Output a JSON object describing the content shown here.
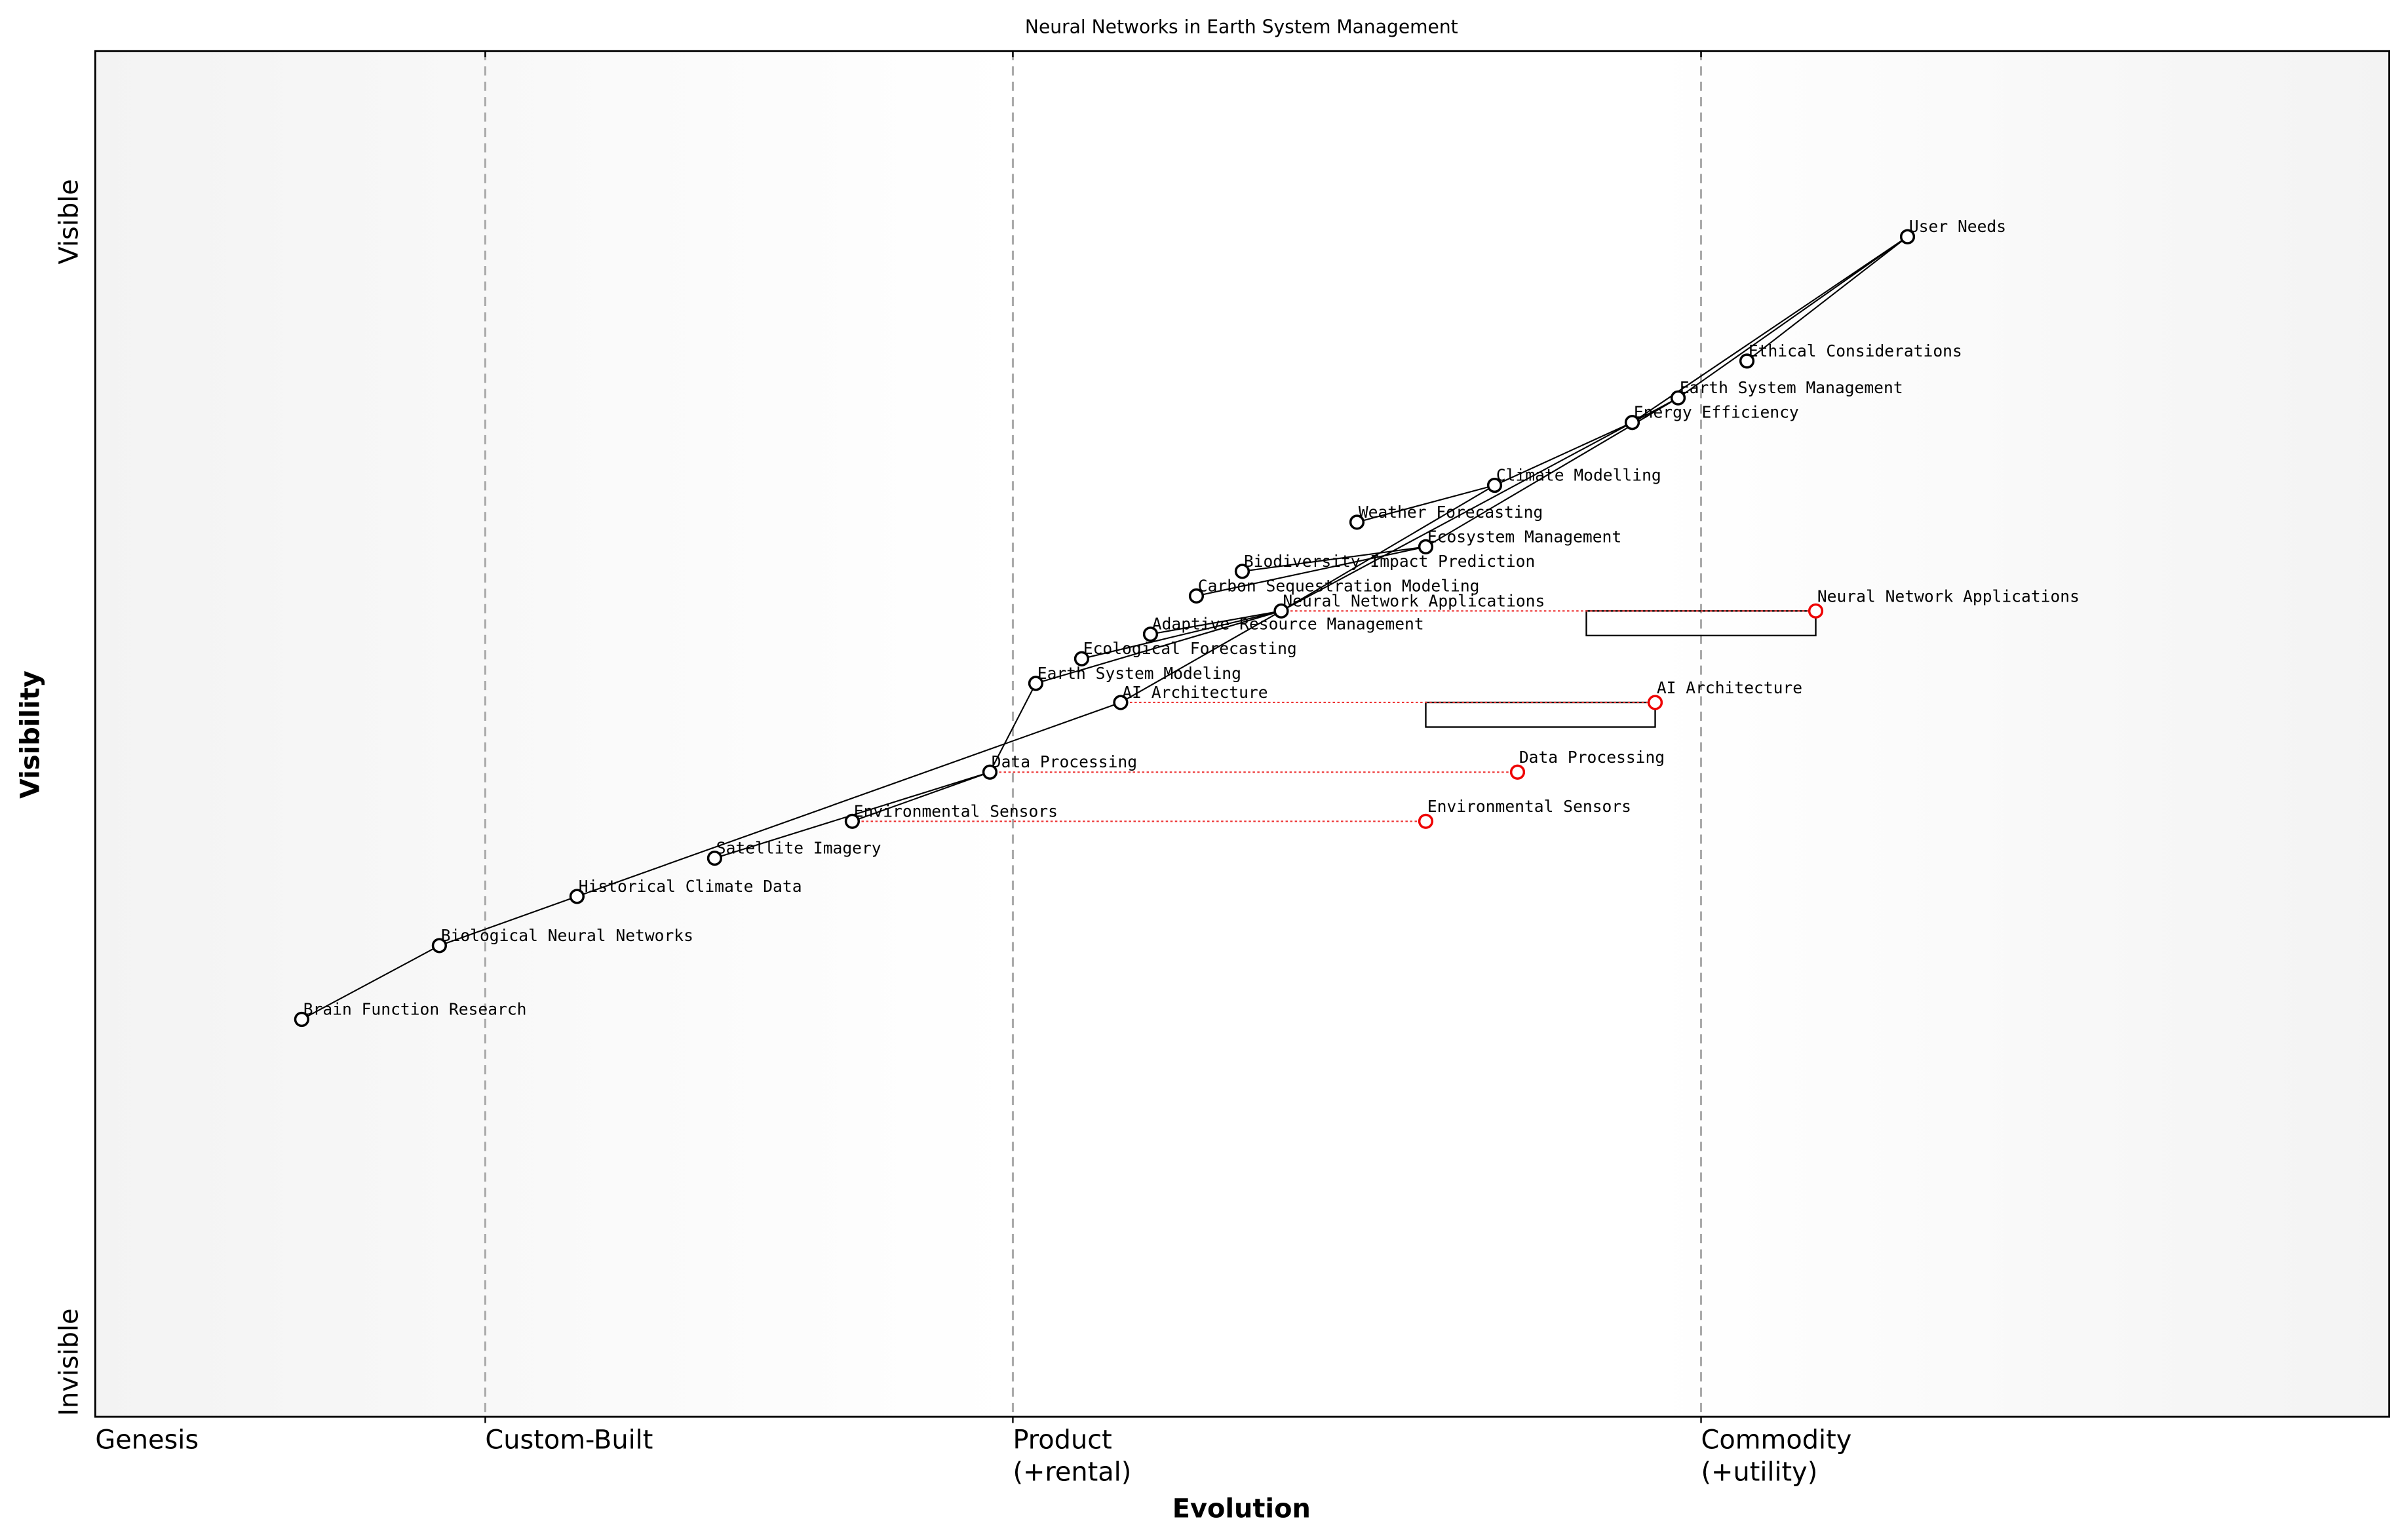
{
  "chart_data": {
    "type": "wardley",
    "title": "Neural Networks in Earth System Management",
    "x_label": "Evolution",
    "y_label": "Visibility",
    "xlim": [
      0,
      1
    ],
    "ylim": [
      0,
      1
    ],
    "xticks": [
      {
        "value": 0,
        "label": [
          "Genesis"
        ]
      },
      {
        "value": 0.17,
        "label": [
          "Custom-Built"
        ]
      },
      {
        "value": 0.4,
        "label": [
          "Product",
          "(+rental)"
        ]
      },
      {
        "value": 0.7,
        "label": [
          "Commodity",
          "(+utility)"
        ]
      }
    ],
    "yticks": [
      {
        "value": 0.04,
        "label": "Invisible"
      },
      {
        "value": 0.875,
        "label": "Visible"
      }
    ],
    "nodes": [
      {
        "name": "User Needs",
        "x": 0.79,
        "y": 0.864
      },
      {
        "name": "Ethical Considerations",
        "x": 0.72,
        "y": 0.773
      },
      {
        "name": "Earth System Management",
        "x": 0.69,
        "y": 0.746
      },
      {
        "name": "Energy Efficiency",
        "x": 0.67,
        "y": 0.728
      },
      {
        "name": "Climate Modelling",
        "x": 0.61,
        "y": 0.682
      },
      {
        "name": "Weather Forecasting",
        "x": 0.55,
        "y": 0.655
      },
      {
        "name": "Ecosystem Management",
        "x": 0.58,
        "y": 0.637
      },
      {
        "name": "Biodiversity Impact Prediction",
        "x": 0.5,
        "y": 0.619
      },
      {
        "name": "Carbon Sequestration Modeling",
        "x": 0.48,
        "y": 0.601
      },
      {
        "name": "Neural Network Applications",
        "x": 0.517,
        "y": 0.59,
        "evolve_to": 0.75,
        "pipeline_start": 0.65
      },
      {
        "name": "Adaptive Resource Management",
        "x": 0.46,
        "y": 0.573
      },
      {
        "name": "Ecological Forecasting",
        "x": 0.43,
        "y": 0.555
      },
      {
        "name": "Earth System Modeling",
        "x": 0.41,
        "y": 0.537
      },
      {
        "name": "AI Architecture",
        "x": 0.447,
        "y": 0.523,
        "evolve_to": 0.68,
        "pipeline_start": 0.58
      },
      {
        "name": "Data Processing",
        "x": 0.39,
        "y": 0.472,
        "evolve_to": 0.62
      },
      {
        "name": "Environmental Sensors",
        "x": 0.33,
        "y": 0.436,
        "evolve_to": 0.58
      },
      {
        "name": "Satellite Imagery",
        "x": 0.27,
        "y": 0.409
      },
      {
        "name": "Historical Climate Data",
        "x": 0.21,
        "y": 0.381
      },
      {
        "name": "Biological Neural Networks",
        "x": 0.15,
        "y": 0.345
      },
      {
        "name": "Brain Function Research",
        "x": 0.09,
        "y": 0.291
      }
    ],
    "links": [
      [
        0,
        1
      ],
      [
        0,
        2
      ],
      [
        0,
        3
      ],
      [
        2,
        6
      ],
      [
        2,
        9
      ],
      [
        3,
        4
      ],
      [
        4,
        5
      ],
      [
        4,
        9
      ],
      [
        6,
        7
      ],
      [
        6,
        8
      ],
      [
        9,
        10
      ],
      [
        9,
        11
      ],
      [
        9,
        12
      ],
      [
        9,
        13
      ],
      [
        12,
        14
      ],
      [
        13,
        17
      ],
      [
        14,
        15
      ],
      [
        14,
        16
      ],
      [
        17,
        18
      ],
      [
        18,
        19
      ]
    ]
  }
}
